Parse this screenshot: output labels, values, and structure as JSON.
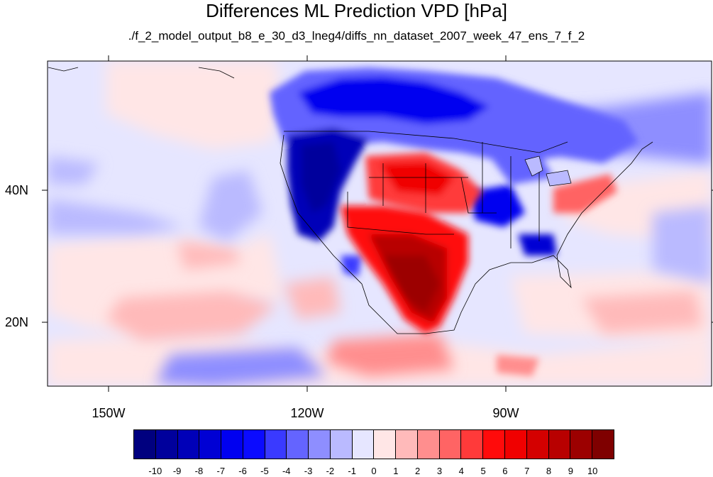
{
  "title": "Differences ML Prediction VPD [hPa]",
  "subtitle": "./f_2_model_output_b8_e_30_d3_lneg4/diffs_nn_dataset_2007_week_47_ens_7_f_2",
  "map": {
    "lon_labels": [
      "150W",
      "120W",
      "90W"
    ],
    "lat_labels": [
      "40N",
      "20N"
    ]
  },
  "colorbar": {
    "labels": [
      "-10",
      "-9",
      "-8",
      "-7",
      "-6",
      "-5",
      "-4",
      "-3",
      "-2",
      "-1",
      "0",
      "1",
      "2",
      "3",
      "4",
      "5",
      "6",
      "7",
      "8",
      "9",
      "10"
    ],
    "colors": [
      "#00007f",
      "#00009c",
      "#0000b8",
      "#0000d4",
      "#0000f0",
      "#0b0bff",
      "#3a3aff",
      "#6464ff",
      "#8e8eff",
      "#babaff",
      "#e6e6ff",
      "#ffe6e6",
      "#ffbaba",
      "#ff8e8e",
      "#ff6464",
      "#ff3a3a",
      "#ff0b0b",
      "#f00000",
      "#d40000",
      "#b80000",
      "#9c0000",
      "#7f0000"
    ]
  }
}
